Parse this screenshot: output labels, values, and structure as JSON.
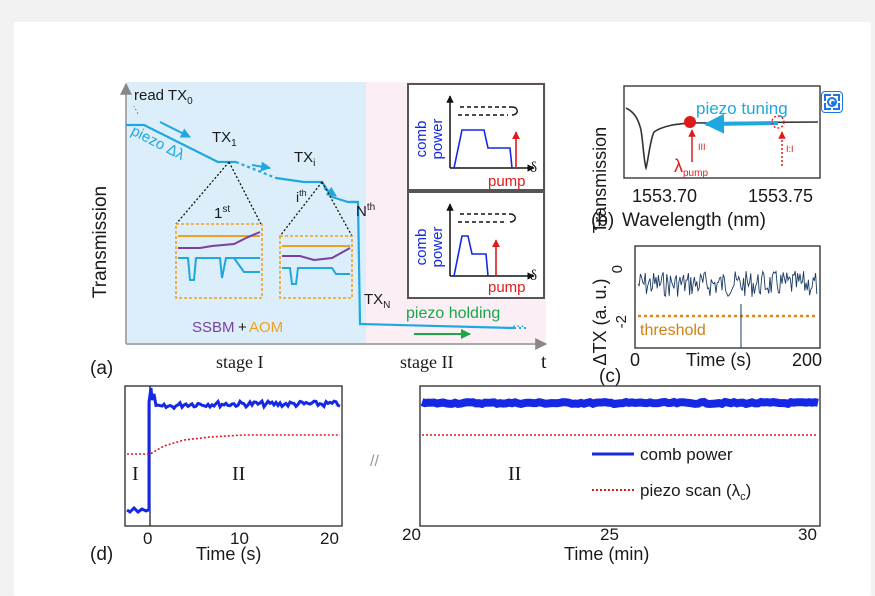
{
  "figure": {
    "panel_a": {
      "label": "(a)",
      "ylabel": "Transmission",
      "xlabel": "t",
      "read_label": "read TX",
      "read_sub": "0",
      "piezo_label": "piezo Δλ",
      "tx1": "TX",
      "tx1_sub": "1",
      "txi": "TX",
      "txi_sub": "i",
      "ith": "i",
      "ith_sup": "th",
      "first": "1",
      "first_sup": "st",
      "nth": "N",
      "nth_sup": "th",
      "txn": "TX",
      "txn_sub": "N",
      "ssbm": "SSBM",
      "plus": "+",
      "aom": "AOM",
      "piezo_holding": "piezo holding",
      "dots": "...",
      "stage1": "stage I",
      "stage2": "stage II",
      "inset_ylabel_1": "comb",
      "inset_ylabel_2": "power",
      "inset_pump": "pump",
      "inset_delta": "δ"
    },
    "panel_b": {
      "label": "(b)",
      "ylabel": "Transmission",
      "xlabel": "Wavelength (nm)",
      "tick_1": "1553.70",
      "tick_2": "1553.75",
      "piezo_tuning": "piezo tuning",
      "lambda": "λ",
      "lambda_sub": "pump",
      "marker_solid": "III",
      "marker_dotted": "I:I"
    },
    "panel_c": {
      "label": "(c)",
      "ylabel": "ΔTX (a. u.)",
      "xlabel": "Time (s)",
      "ytick_0": "0",
      "ytick_m2": "-2",
      "xtick_0": "0",
      "xtick_200": "200",
      "threshold": "threshold"
    },
    "panel_d": {
      "label": "(d)",
      "left": {
        "xlabel": "Time (s)",
        "xticks": [
          "0",
          "10",
          "20"
        ],
        "stage_I": "I",
        "stage_II": "II"
      },
      "break_mark": "//",
      "right": {
        "xlabel": "Time (min)",
        "xticks": [
          "20",
          "25",
          "30"
        ],
        "stage_II": "II",
        "legend_comb": "comb power",
        "legend_piezo": "piezo scan (λ",
        "legend_piezo_sub": "c",
        "legend_piezo_end": ")"
      }
    }
  },
  "colors": {
    "cyan": "#1fa7e0",
    "purple": "#7a3fa0",
    "orange": "#f0a020",
    "blue": "#1428e6",
    "red": "#e01a1a",
    "green": "#18a848",
    "navy": "#1c3c64",
    "stage1_bg": "#dbeefa",
    "stage2_bg": "#fbeef5"
  },
  "chart_data": [
    {
      "type": "line",
      "panel": "(c)",
      "xlabel": "Time (s)",
      "ylabel": "ΔTX (a. u.)",
      "xlim": [
        0,
        200
      ],
      "ylim": [
        -3,
        0.5
      ],
      "series": [
        {
          "name": "",
          "x": [
            0,
            25,
            50,
            75,
            100,
            125,
            150,
            175,
            200
          ],
          "y": [
            -0.45,
            -0.55,
            -0.4,
            -0.6,
            -0.5,
            -0.45,
            -0.5,
            -0.55,
            -0.5
          ]
        },
        {
          "name": "threshold",
          "x": [
            0,
            200
          ],
          "y": [
            -1.7,
            -1.7
          ]
        }
      ]
    },
    {
      "type": "line",
      "panel": "(d) left",
      "xlabel": "Time (s)",
      "xlim": [
        -2,
        20
      ],
      "series": [
        {
          "name": "comb power",
          "x": [
            -2,
            -0.4,
            0,
            1,
            3,
            5,
            10,
            15,
            20
          ],
          "y": [
            0.03,
            0.03,
            0.93,
            0.85,
            0.8,
            0.82,
            0.83,
            0.83,
            0.83
          ]
        },
        {
          "name": "piezo scan (λc)",
          "x": [
            -2,
            0,
            3,
            6,
            10,
            15,
            20
          ],
          "y": [
            0.62,
            0.62,
            0.66,
            0.68,
            0.69,
            0.69,
            0.69
          ]
        }
      ]
    },
    {
      "type": "line",
      "panel": "(d) right",
      "xlabel": "Time (min)",
      "xlim": [
        20,
        30
      ],
      "series": [
        {
          "name": "comb power",
          "x": [
            20,
            25,
            30
          ],
          "y": [
            0.92,
            0.92,
            0.92
          ]
        },
        {
          "name": "piezo scan (λc)",
          "x": [
            20,
            25,
            30
          ],
          "y": [
            0.66,
            0.66,
            0.66
          ]
        }
      ]
    }
  ]
}
